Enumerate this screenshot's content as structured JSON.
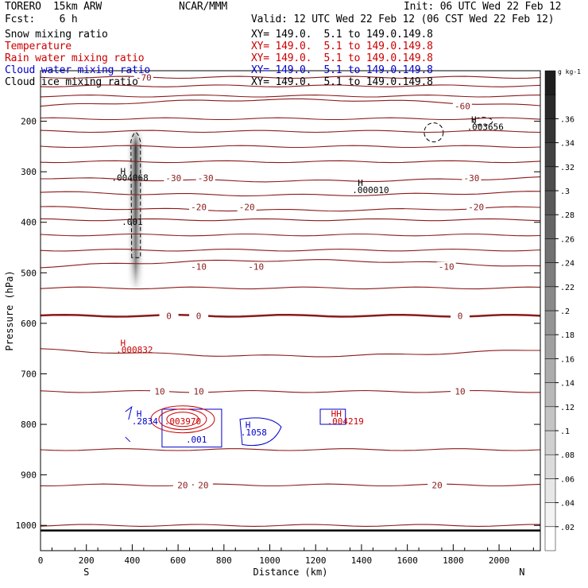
{
  "header": {
    "model": "TORERO  15km ARW",
    "center": "NCAR/MMM",
    "init": "Init: 06 UTC Wed 22 Feb 12",
    "fcst": "Fcst:    6 h",
    "valid": "Valid: 12 UTC Wed 22 Feb 12 (06 CST Wed 22 Feb 12)"
  },
  "fields": [
    {
      "name": "Snow mixing ratio",
      "xy": "",
      "color": "#000000"
    },
    {
      "name": "Temperature",
      "xy": "XY= 149.0.  5.1 to 149.0.149.8",
      "color": "#cc0000"
    },
    {
      "name": "Rain water mixing ratio",
      "xy": "XY= 149.0.  5.1 to 149.0.149.8",
      "color": "#cc0000"
    },
    {
      "name": "Cloud water mixing ratio",
      "xy": "XY= 149.0.  5.1 to 149.0.149.8",
      "color": "#0000cc"
    },
    {
      "name": "Cloud ice mixing ratio",
      "xy": "XY= 149.0.  5.1 to 149.0.149.8",
      "color": "#000000"
    }
  ],
  "snow_xy": "XY= 149.0.  5.1 to 149.0.149.8",
  "colors": {
    "temperature": "#8b1a1a",
    "rain": "#cc0000",
    "cloud_water": "#0000cc",
    "ice": "#000000",
    "axis": "#000000"
  },
  "chart_data": {
    "type": "contour-cross-section",
    "xlabel": "Distance (km)",
    "ylabel": "Pressure (hPa)",
    "xlim": [
      0,
      2180
    ],
    "ylim": [
      1050,
      100
    ],
    "x_ticks": [
      0,
      200,
      400,
      600,
      800,
      1000,
      1200,
      1400,
      1600,
      1800,
      2000
    ],
    "y_ticks": [
      200,
      300,
      400,
      500,
      600,
      700,
      800,
      900,
      1000
    ],
    "endpoints": {
      "left": "S",
      "right": "N"
    },
    "temperature_isotherms": [
      {
        "p": 113,
        "slope": 0,
        "label": "-70",
        "label_x": [
          450
        ]
      },
      {
        "p": 130,
        "slope": 0,
        "label": "",
        "label_x": []
      },
      {
        "p": 150,
        "slope": 0,
        "label": "",
        "label_x": []
      },
      {
        "p": 170,
        "slope": -8,
        "label": "-60",
        "label_x": [
          1840
        ]
      },
      {
        "p": 195,
        "slope": 0,
        "label": "",
        "label_x": []
      },
      {
        "p": 220,
        "slope": 0,
        "label": "",
        "label_x": []
      },
      {
        "p": 250,
        "slope": 0,
        "label": "",
        "label_x": []
      },
      {
        "p": 280,
        "slope": 0,
        "label": "",
        "label_x": []
      },
      {
        "p": 312,
        "slope": 4,
        "label": "-30",
        "label_x": [
          580,
          720,
          1880
        ]
      },
      {
        "p": 340,
        "slope": 4,
        "label": "",
        "label_x": []
      },
      {
        "p": 370,
        "slope": 4,
        "label": "-20",
        "label_x": [
          690,
          900,
          1900
        ]
      },
      {
        "p": 395,
        "slope": 0,
        "label": "",
        "label_x": []
      },
      {
        "p": 425,
        "slope": 0,
        "label": "",
        "label_x": []
      },
      {
        "p": 455,
        "slope": 0,
        "label": "",
        "label_x": []
      },
      {
        "p": 488,
        "slope": -8,
        "label": "-10",
        "label_x": [
          690,
          940,
          1770
        ]
      },
      {
        "p": 530,
        "slope": 0,
        "label": "",
        "label_x": []
      },
      {
        "p": 585,
        "slope": 0,
        "label": "0",
        "label_x": [
          560,
          690,
          1830
        ]
      },
      {
        "p": 652,
        "slope": 8,
        "label": "",
        "label_x": []
      },
      {
        "p": 735,
        "slope": 0,
        "label": "10",
        "label_x": [
          520,
          690,
          1830
        ]
      },
      {
        "p": 850,
        "slope": 0,
        "label": "",
        "label_x": []
      },
      {
        "p": 920,
        "slope": 0,
        "label": "20",
        "label_x": [
          620,
          710,
          1730
        ]
      },
      {
        "p": 1000,
        "slope": 0,
        "label": "",
        "label_x": []
      }
    ],
    "snow_column": {
      "x": 415,
      "p_top": 215,
      "p_bottom": 535,
      "max": 0.004068
    },
    "shading_scale": {
      "unit": "g kg-1",
      "ticks": [
        ".02",
        ".04",
        ".06",
        ".08",
        ".1",
        ".12",
        ".14",
        ".16",
        ".18",
        ".2",
        ".22",
        ".24",
        ".26",
        ".28",
        ".3",
        ".32",
        ".34",
        ".36"
      ]
    },
    "annotations": [
      {
        "text": "H",
        "x": 360,
        "p": 305,
        "color": "#000000"
      },
      {
        "text": ".004068",
        "x": 390,
        "p": 318,
        "color": "#000000"
      },
      {
        "text": ".001",
        "x": 400,
        "p": 405,
        "color": "#000000"
      },
      {
        "text": "H",
        "x": 1395,
        "p": 328,
        "color": "#000000"
      },
      {
        "text": ".000010",
        "x": 1440,
        "p": 342,
        "color": "#000000"
      },
      {
        "text": "H",
        "x": 1890,
        "p": 203,
        "color": "#000000"
      },
      {
        "text": ".003656",
        "x": 1940,
        "p": 217,
        "color": "#000000"
      },
      {
        "text": "H",
        "x": 360,
        "p": 645,
        "color": "#cc0000"
      },
      {
        "text": ".000832",
        "x": 410,
        "p": 658,
        "color": "#cc0000"
      },
      {
        "text": "H",
        "x": 430,
        "p": 785,
        "color": "#0000cc"
      },
      {
        "text": ".2834",
        "x": 455,
        "p": 800,
        "color": "#0000cc"
      },
      {
        "text": ".003970",
        "x": 620,
        "p": 800,
        "color": "#cc0000"
      },
      {
        "text": "H",
        "x": 905,
        "p": 807,
        "color": "#0000cc"
      },
      {
        "text": ".1058",
        "x": 930,
        "p": 822,
        "color": "#0000cc"
      },
      {
        "text": ".001",
        "x": 680,
        "p": 836,
        "color": "#0000cc"
      },
      {
        "text": "HH",
        "x": 1290,
        "p": 785,
        "color": "#cc0000"
      },
      {
        "text": ".004219",
        "x": 1330,
        "p": 800,
        "color": "#cc0000"
      }
    ]
  }
}
